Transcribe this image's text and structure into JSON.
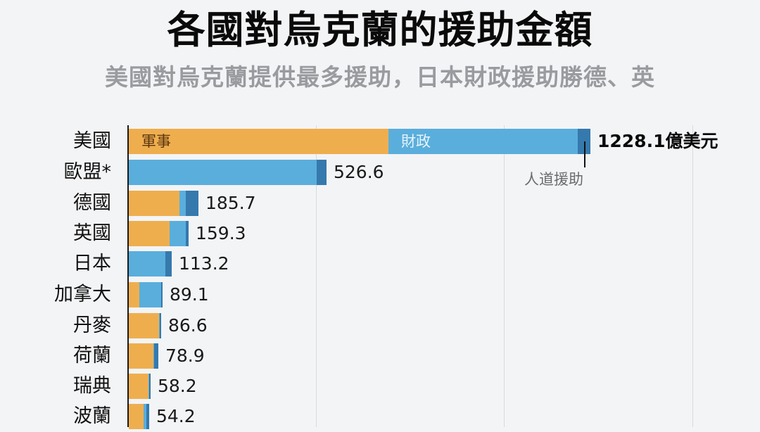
{
  "header": {
    "title": "各國對烏克蘭的援助金額",
    "subtitle": "美國對烏克蘭提供最多援助，日本財政援助勝德、英"
  },
  "colors": {
    "military": "#efae4e",
    "financial": "#5aaedc",
    "humanitarian": "#3579ad",
    "background": "#f3f4f6"
  },
  "annotations": {
    "military_label": "軍事",
    "financial_label": "財政",
    "humanitarian_label": "人道援助",
    "first_value_label": "1228.1億美元"
  },
  "chart_data": {
    "type": "bar",
    "orientation": "horizontal",
    "stacked": true,
    "title": "各國對烏克蘭的援助金額",
    "subtitle": "美國對烏克蘭提供最多援助，日本財政援助勝德、英",
    "xlabel": "",
    "ylabel": "",
    "unit": "億美元",
    "xlim": [
      0,
      1500
    ],
    "grid": true,
    "gridlines_at": [
      0,
      500,
      1000,
      1500
    ],
    "legend": "inline labels (軍事, 財政, 人道援助)",
    "categories": [
      "美國",
      "歐盟*",
      "德國",
      "英國",
      "日本",
      "加拿大",
      "丹麥",
      "荷蘭",
      "瑞典",
      "波蘭"
    ],
    "totals": [
      1228.1,
      526.6,
      185.7,
      159.3,
      113.2,
      89.1,
      86.6,
      78.9,
      58.2,
      54.2
    ],
    "total_labels": [
      "1228.1億美元",
      "526.6",
      "185.7",
      "159.3",
      "113.2",
      "89.1",
      "86.6",
      "78.9",
      "58.2",
      "54.2"
    ],
    "series": [
      {
        "name": "軍事",
        "color": "#efae4e",
        "values": [
          691,
          0,
          135,
          109,
          0,
          28,
          81,
          66,
          53,
          40
        ]
      },
      {
        "name": "財政",
        "color": "#5aaedc",
        "values": [
          503,
          500,
          17,
          43,
          97,
          58,
          2,
          2,
          1,
          7
        ]
      },
      {
        "name": "人道援助",
        "color": "#3579ad",
        "values": [
          34.1,
          26.6,
          33.7,
          7.3,
          16.2,
          3.1,
          3.6,
          10.9,
          4.2,
          7.2
        ]
      }
    ]
  }
}
